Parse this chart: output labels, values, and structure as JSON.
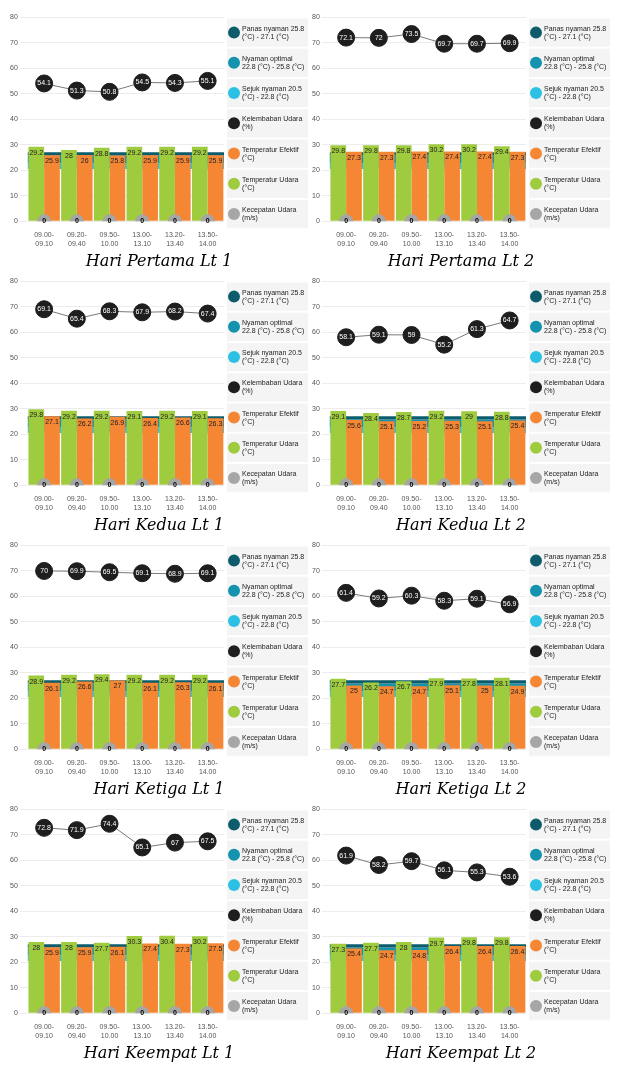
{
  "chart_data": [
    {
      "type": "bar",
      "title": "Hari Pertama Lt 1",
      "categories": [
        "09.00-09.10",
        "09.20-09.40",
        "09.50-10.00",
        "13.00-13.10",
        "13.20-13.40",
        "13.50-14.00"
      ],
      "series": [
        {
          "name": "Kecepatan Udara (m/s)",
          "type": "scatter",
          "color": "#a6a6a6",
          "values": [
            0,
            0,
            0,
            0,
            0,
            0
          ]
        },
        {
          "name": "Temperatur Udara (°C)",
          "color": "#9fcb3f",
          "values": [
            29.2,
            28,
            28.8,
            29.2,
            29.2,
            29.2
          ]
        },
        {
          "name": "Temperatur Efektif (°C)",
          "color": "#f58634",
          "values": [
            25.9,
            26,
            25.8,
            25.9,
            25.9,
            25.9
          ]
        },
        {
          "name": "Kelembaban Udara (%)",
          "type": "line",
          "color": "#1e1e1e",
          "values": [
            54.1,
            51.3,
            50.8,
            54.5,
            54.3,
            55.1
          ]
        }
      ],
      "bands": [
        {
          "axis": "y",
          "from": 20.5,
          "to": 22.8,
          "label": "Sejuk nyaman 20.5 (°C) - 22.8 (°C)",
          "color": "#2bc0e4"
        },
        {
          "axis": "y",
          "from": 22.8,
          "to": 25.8,
          "label": "Nyaman optimal 22.8 (°C) - 25.8 (°C)",
          "color": "#1593ad"
        },
        {
          "axis": "y",
          "from": 25.8,
          "to": 27.1,
          "label": "Panas nyaman 25.8 (°C) - 27.1 (°C)",
          "color": "#0d5c6b"
        }
      ],
      "ylim": [
        0,
        80
      ],
      "yticks": [
        0,
        10,
        20,
        30,
        40,
        50,
        60,
        70,
        80
      ],
      "grid": "y",
      "legend": "right",
      "data_labels": true,
      "marker": "circle"
    },
    {
      "type": "bar",
      "title": "Hari Pertama Lt 2",
      "categories": [
        "09.00-09.10",
        "09.20-09.40",
        "09.50-10.00",
        "13.00-13.10",
        "13.20-13.40",
        "13.50-14.00"
      ],
      "series": [
        {
          "name": "Kecepatan Udara (m/s)",
          "type": "scatter",
          "color": "#a6a6a6",
          "values": [
            0,
            0,
            0,
            0,
            0,
            0
          ]
        },
        {
          "name": "Temperatur Udara (°C)",
          "color": "#9fcb3f",
          "values": [
            29.8,
            29.8,
            29.8,
            30.2,
            30.2,
            29.4
          ]
        },
        {
          "name": "Temperatur Efektif (°C)",
          "color": "#f58634",
          "values": [
            27.3,
            27.3,
            27.4,
            27.4,
            27.4,
            27.3
          ]
        },
        {
          "name": "Kelembaban Udara (%)",
          "type": "line",
          "color": "#1e1e1e",
          "values": [
            72.1,
            72,
            73.5,
            69.7,
            69.7,
            69.9
          ]
        }
      ],
      "bands": [
        {
          "axis": "y",
          "from": 20.5,
          "to": 22.8,
          "label": "Sejuk nyaman 20.5 (°C) - 22.8 (°C)",
          "color": "#2bc0e4"
        },
        {
          "axis": "y",
          "from": 22.8,
          "to": 25.8,
          "label": "Nyaman optimal 22.8 (°C) - 25.8 (°C)",
          "color": "#1593ad"
        },
        {
          "axis": "y",
          "from": 25.8,
          "to": 27.1,
          "label": "Panas nyaman 25.8 (°C) - 27.1 (°C)",
          "color": "#0d5c6b"
        }
      ],
      "ylim": [
        0,
        80
      ],
      "yticks": [
        0,
        10,
        20,
        30,
        40,
        50,
        60,
        70,
        80
      ],
      "grid": "y",
      "legend": "right",
      "data_labels": true,
      "marker": "circle"
    },
    {
      "type": "bar",
      "title": "Hari Kedua  Lt 1",
      "categories": [
        "09.00-09.10",
        "09.20-09.40",
        "09.50-10.00",
        "13.00-13.10",
        "13.20-13.40",
        "13.50-14.00"
      ],
      "series": [
        {
          "name": "Kecepatan Udara (m/s)",
          "type": "scatter",
          "color": "#a6a6a6",
          "values": [
            0,
            0,
            0,
            0,
            0,
            0
          ]
        },
        {
          "name": "Temperatur Udara (°C)",
          "color": "#9fcb3f",
          "values": [
            29.8,
            29.2,
            29.2,
            29.1,
            29.2,
            29.1
          ]
        },
        {
          "name": "Temperatur Efektif (°C)",
          "color": "#f58634",
          "values": [
            27.1,
            26.2,
            26.9,
            26.4,
            26.6,
            26.3
          ]
        },
        {
          "name": "Kelembaban Udara (%)",
          "type": "line",
          "color": "#1e1e1e",
          "values": [
            69.1,
            65.4,
            68.3,
            67.9,
            68.2,
            67.4
          ]
        }
      ],
      "bands": [
        {
          "axis": "y",
          "from": 20.5,
          "to": 22.8,
          "label": "Sejuk nyaman 20.5 (°C) - 22.8 (°C)",
          "color": "#2bc0e4"
        },
        {
          "axis": "y",
          "from": 22.8,
          "to": 25.8,
          "label": "Nyaman optimal 22.8 (°C) - 25.8 (°C)",
          "color": "#1593ad"
        },
        {
          "axis": "y",
          "from": 25.8,
          "to": 27.1,
          "label": "Panas nyaman 25.8 (°C) - 27.1 (°C)",
          "color": "#0d5c6b"
        }
      ],
      "ylim": [
        0,
        80
      ],
      "yticks": [
        0,
        10,
        20,
        30,
        40,
        50,
        60,
        70,
        80
      ],
      "grid": "y",
      "legend": "right",
      "data_labels": true,
      "marker": "circle"
    },
    {
      "type": "bar",
      "title": "Hari Kedua Lt 2",
      "categories": [
        "09.00-09.10",
        "09.20-09.40",
        "09.50-10.00",
        "13.00-13.10",
        "13.20-13.40",
        "13.50-14.00"
      ],
      "series": [
        {
          "name": "Kecepatan Udara (m/s)",
          "type": "scatter",
          "color": "#a6a6a6",
          "values": [
            0,
            0,
            0,
            0,
            0,
            0
          ]
        },
        {
          "name": "Temperatur Udara (°C)",
          "color": "#9fcb3f",
          "values": [
            29.1,
            28.4,
            28.7,
            29.2,
            29,
            28.8
          ]
        },
        {
          "name": "Temperatur Efektif (°C)",
          "color": "#f58634",
          "values": [
            25.6,
            25.1,
            25.2,
            25.3,
            25.1,
            25.4
          ]
        },
        {
          "name": "Kelembaban Udara (%)",
          "type": "line",
          "color": "#1e1e1e",
          "values": [
            58.1,
            59.1,
            59,
            55.2,
            61.3,
            64.7
          ]
        }
      ],
      "bands": [
        {
          "axis": "y",
          "from": 20.5,
          "to": 22.8,
          "label": "Sejuk nyaman 20.5 (°C) - 22.8 (°C)",
          "color": "#2bc0e4"
        },
        {
          "axis": "y",
          "from": 22.8,
          "to": 25.8,
          "label": "Nyaman optimal 22.8 (°C) - 25.8 (°C)",
          "color": "#1593ad"
        },
        {
          "axis": "y",
          "from": 25.8,
          "to": 27.1,
          "label": "Panas nyaman 25.8 (°C) - 27.1 (°C)",
          "color": "#0d5c6b"
        }
      ],
      "ylim": [
        0,
        80
      ],
      "yticks": [
        0,
        10,
        20,
        30,
        40,
        50,
        60,
        70,
        80
      ],
      "grid": "y",
      "legend": "right",
      "data_labels": true,
      "marker": "circle"
    },
    {
      "type": "bar",
      "title": "Hari Ketiga Lt 1",
      "categories": [
        "09.00-09.10",
        "09.20-09.40",
        "09.50-10.00",
        "13.00-13.10",
        "13.20-13.40",
        "13.50-14.00"
      ],
      "series": [
        {
          "name": "Kecepatan Udara (m/s)",
          "type": "scatter",
          "color": "#a6a6a6",
          "values": [
            0,
            0,
            0,
            0,
            0,
            0
          ]
        },
        {
          "name": "Temperatur Udara (°C)",
          "color": "#9fcb3f",
          "values": [
            28.9,
            29.2,
            29.4,
            29.2,
            29.2,
            29.2
          ]
        },
        {
          "name": "Temperatur Efektif (°C)",
          "color": "#f58634",
          "values": [
            26.1,
            26.6,
            27,
            26.1,
            26.3,
            26.1
          ]
        },
        {
          "name": "Kelembaban Udara (%)",
          "type": "line",
          "color": "#1e1e1e",
          "values": [
            70,
            69.9,
            69.5,
            69.1,
            68.9,
            69.1
          ]
        }
      ],
      "bands": [
        {
          "axis": "y",
          "from": 20.5,
          "to": 22.8,
          "label": "Sejuk nyaman 20.5 (°C) - 22.8 (°C)",
          "color": "#2bc0e4"
        },
        {
          "axis": "y",
          "from": 22.8,
          "to": 25.8,
          "label": "Nyaman optimal 22.8 (°C) - 25.8 (°C)",
          "color": "#1593ad"
        },
        {
          "axis": "y",
          "from": 25.8,
          "to": 27.1,
          "label": "Panas nyaman 25.8 (°C) - 27.1 (°C)",
          "color": "#0d5c6b"
        }
      ],
      "ylim": [
        0,
        80
      ],
      "yticks": [
        0,
        10,
        20,
        30,
        40,
        50,
        60,
        70,
        80
      ],
      "grid": "y",
      "legend": "right",
      "data_labels": true,
      "marker": "circle"
    },
    {
      "type": "bar",
      "title": "Hari Ketiga Lt 2",
      "categories": [
        "09.00-09.10",
        "09.20-09.40",
        "09.50-10.00",
        "13.00-13.10",
        "13.20-13.40",
        "13.50-14.00"
      ],
      "series": [
        {
          "name": "Kecepatan Udara (m/s)",
          "type": "scatter",
          "color": "#a6a6a6",
          "values": [
            0,
            0,
            0,
            0,
            0,
            0
          ]
        },
        {
          "name": "Temperatur Udara (°C)",
          "color": "#9fcb3f",
          "values": [
            27.7,
            26.2,
            26.7,
            27.9,
            27.8,
            28.1
          ]
        },
        {
          "name": "Temperatur Efektif (°C)",
          "color": "#f58634",
          "values": [
            25,
            24.7,
            24.7,
            25.1,
            25,
            24.9
          ]
        },
        {
          "name": "Kelembaban Udara (%)",
          "type": "line",
          "color": "#1e1e1e",
          "values": [
            61.4,
            59.2,
            60.3,
            58.3,
            59.1,
            56.9
          ]
        }
      ],
      "bands": [
        {
          "axis": "y",
          "from": 20.5,
          "to": 22.8,
          "label": "Sejuk nyaman 20.5 (°C) - 22.8 (°C)",
          "color": "#2bc0e4"
        },
        {
          "axis": "y",
          "from": 22.8,
          "to": 25.8,
          "label": "Nyaman optimal 22.8 (°C) - 25.8 (°C)",
          "color": "#1593ad"
        },
        {
          "axis": "y",
          "from": 25.8,
          "to": 27.1,
          "label": "Panas nyaman 25.8 (°C) - 27.1 (°C)",
          "color": "#0d5c6b"
        }
      ],
      "ylim": [
        0,
        80
      ],
      "yticks": [
        0,
        10,
        20,
        30,
        40,
        50,
        60,
        70,
        80
      ],
      "grid": "y",
      "legend": "right",
      "data_labels": true,
      "marker": "circle"
    },
    {
      "type": "bar",
      "title": "Hari Keempat Lt 1",
      "categories": [
        "09.00-09.10",
        "09.20-09.40",
        "09.50-10.00",
        "13.00-13.10",
        "13.20-13.40",
        "13.50-14.00"
      ],
      "series": [
        {
          "name": "Kecepatan Udara (m/s)",
          "type": "scatter",
          "color": "#a6a6a6",
          "values": [
            0,
            0,
            0,
            0,
            0,
            0
          ]
        },
        {
          "name": "Temperatur Udara (°C)",
          "color": "#9fcb3f",
          "values": [
            28,
            28,
            27.7,
            30.3,
            30.4,
            30.2
          ]
        },
        {
          "name": "Temperatur Efektif (°C)",
          "color": "#f58634",
          "values": [
            25.9,
            25.9,
            26.1,
            27.4,
            27.3,
            27.5
          ]
        },
        {
          "name": "Kelembaban Udara (%)",
          "type": "line",
          "color": "#1e1e1e",
          "values": [
            72.8,
            71.9,
            74.4,
            65.1,
            67,
            67.5
          ]
        }
      ],
      "bands": [
        {
          "axis": "y",
          "from": 20.5,
          "to": 22.8,
          "label": "Sejuk nyaman 20.5 (°C) - 22.8 (°C)",
          "color": "#2bc0e4"
        },
        {
          "axis": "y",
          "from": 22.8,
          "to": 25.8,
          "label": "Nyaman optimal 22.8 (°C) - 25.8 (°C)",
          "color": "#1593ad"
        },
        {
          "axis": "y",
          "from": 25.8,
          "to": 27.1,
          "label": "Panas nyaman 25.8 (°C) - 27.1 (°C)",
          "color": "#0d5c6b"
        }
      ],
      "ylim": [
        0,
        80
      ],
      "yticks": [
        0,
        10,
        20,
        30,
        40,
        50,
        60,
        70,
        80
      ],
      "grid": "y",
      "legend": "right",
      "data_labels": true,
      "marker": "circle"
    },
    {
      "type": "bar",
      "title": "Hari Keempat Lt 2",
      "categories": [
        "09.00-09.10",
        "09.20-09.40",
        "09.50-10.00",
        "13.00-13.10",
        "13.20-13.40",
        "13.50-14.00"
      ],
      "series": [
        {
          "name": "Kecepatan Udara (m/s)",
          "type": "scatter",
          "color": "#a6a6a6",
          "values": [
            0,
            0,
            0,
            0,
            0,
            0
          ]
        },
        {
          "name": "Temperatur Udara (°C)",
          "color": "#9fcb3f",
          "values": [
            27.3,
            27.7,
            28,
            29.7,
            29.8,
            29.8
          ]
        },
        {
          "name": "Temperatur Efektif (°C)",
          "color": "#f58634",
          "values": [
            25.4,
            24.7,
            24.8,
            26.4,
            26.4,
            26.4
          ]
        },
        {
          "name": "Kelembaban Udara (%)",
          "type": "line",
          "color": "#1e1e1e",
          "values": [
            61.9,
            58.2,
            59.7,
            56.1,
            55.3,
            53.6
          ]
        }
      ],
      "bands": [
        {
          "axis": "y",
          "from": 20.5,
          "to": 22.8,
          "label": "Sejuk nyaman 20.5 (°C) - 22.8 (°C)",
          "color": "#2bc0e4"
        },
        {
          "axis": "y",
          "from": 22.8,
          "to": 25.8,
          "label": "Nyaman optimal 22.8 (°C) - 25.8 (°C)",
          "color": "#1593ad"
        },
        {
          "axis": "y",
          "from": 25.8,
          "to": 27.1,
          "label": "Panas nyaman 25.8 (°C) - 27.1 (°C)",
          "color": "#0d5c6b"
        }
      ],
      "ylim": [
        0,
        80
      ],
      "yticks": [
        0,
        10,
        20,
        30,
        40,
        50,
        60,
        70,
        80
      ],
      "grid": "y",
      "legend": "right",
      "data_labels": true,
      "marker": "circle"
    }
  ]
}
